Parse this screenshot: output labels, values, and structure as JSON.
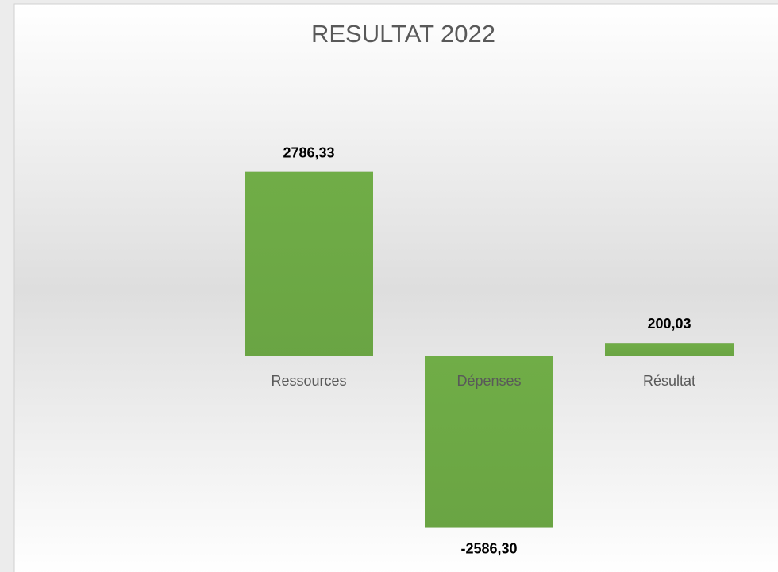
{
  "chart_data": {
    "type": "bar",
    "title": "RESULTAT 2022",
    "categories": [
      "Ressources",
      "Dépenses",
      "Résultat"
    ],
    "values": [
      2786.33,
      -2586.3,
      200.03
    ],
    "value_labels": [
      "2786,33",
      "-2586,30",
      "200,03"
    ],
    "color": "#70ad47",
    "ylim": [
      -3000,
      3000
    ]
  }
}
